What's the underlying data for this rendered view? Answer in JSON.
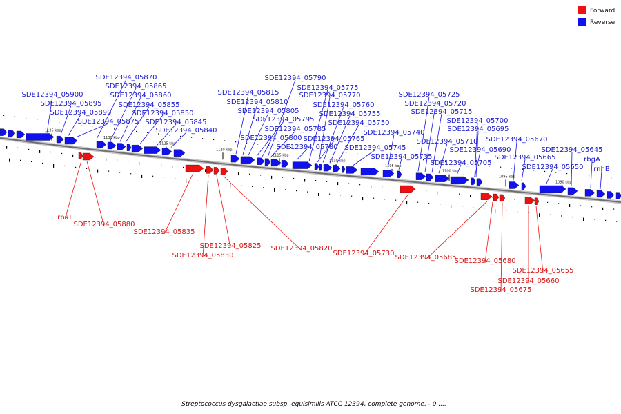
{
  "legend": {
    "forward_label": "Forward",
    "reverse_label": "Reverse",
    "forward_color": "#ee1111",
    "reverse_color": "#1111ee"
  },
  "caption": "Streptococcus dysgalactiae subsp. equisimilis ATCC 12394, complete genome. - 0.....",
  "ticks": [
    "1135 kbp",
    "1130 kbp",
    "1125 kbp",
    "1120 kbp",
    "1115 kbp",
    "1110 kbp",
    "1105 kbp",
    "1100 kbp",
    "1095 kbp",
    "1090 kbp"
  ],
  "reverse_genes": [
    "SDE12394_05900",
    "SDE12394_05895",
    "SDE12394_05890",
    "SDE12394_05875",
    "SDE12394_05870",
    "SDE12394_05865",
    "SDE12394_05860",
    "SDE12394_05855",
    "SDE12394_05850",
    "SDE12394_05845",
    "SDE12394_05840",
    "SDE12394_05815",
    "SDE12394_05810",
    "SDE12394_05805",
    "SDE12394_05795",
    "SDE12394_05790",
    "SDE12394_05785",
    "SDE12394_05800",
    "SDE12394_05780",
    "SDE12394_05775",
    "SDE12394_05770",
    "SDE12394_05760",
    "SDE12394_05755",
    "SDE12394_05765",
    "SDE12394_05750",
    "SDE12394_05745",
    "SDE12394_05740",
    "SDE12394_05735",
    "SDE12394_05725",
    "SDE12394_05720",
    "SDE12394_05715",
    "SDE12394_05710",
    "SDE12394_05705",
    "SDE12394_05700",
    "SDE12394_05695",
    "SDE12394_05690",
    "SDE12394_05670",
    "SDE12394_05665",
    "SDE12394_05650",
    "SDE12394_05645",
    "rbgA",
    "rnhB"
  ],
  "forward_genes": [
    "rpsT",
    "SDE12394_05880",
    "SDE12394_05835",
    "SDE12394_05830",
    "SDE12394_05825",
    "SDE12394_05820",
    "SDE12394_05730",
    "SDE12394_05685",
    "SDE12394_05680",
    "SDE12394_05675",
    "SDE12394_05660",
    "SDE12394_05655"
  ]
}
